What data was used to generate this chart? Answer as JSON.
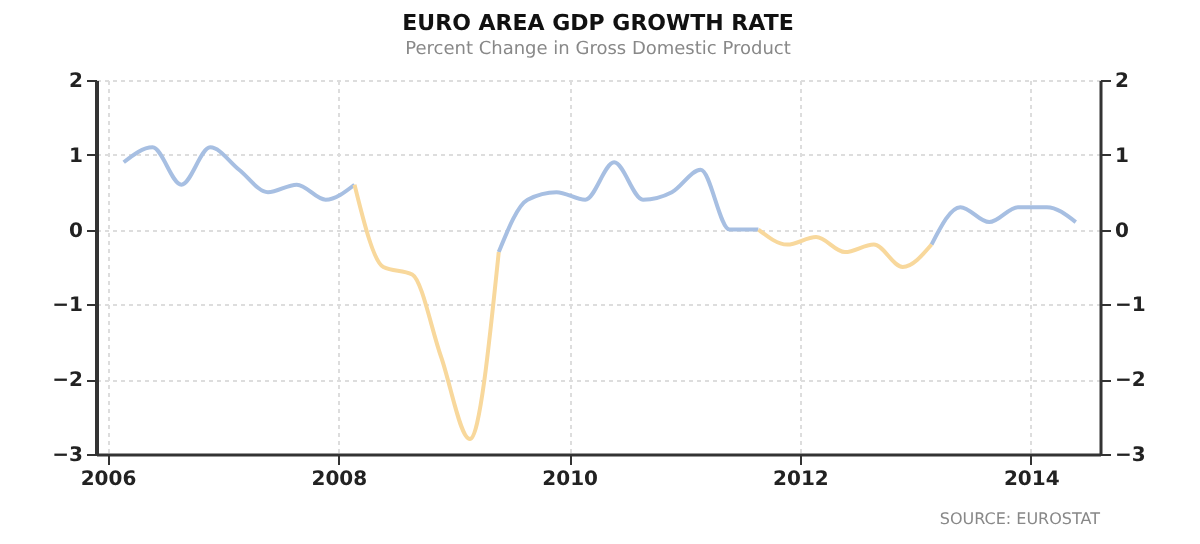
{
  "chart_data": {
    "type": "line",
    "title": "EURO AREA GDP GROWTH RATE",
    "subtitle": "Percent Change in Gross Domestic Product",
    "annotations": [
      "SOURCE: EUROSTAT"
    ],
    "x": [
      2006.14,
      2006.39,
      2006.64,
      2006.89,
      2007.14,
      2007.39,
      2007.64,
      2007.89,
      2008.14,
      2008.39,
      2008.64,
      2008.89,
      2009.14,
      2009.39,
      2009.64,
      2009.89,
      2010.14,
      2010.39,
      2010.64,
      2010.89,
      2011.14,
      2011.39,
      2011.64,
      2011.89,
      2012.14,
      2012.39,
      2012.64,
      2012.89,
      2013.14,
      2013.39,
      2013.64,
      2013.89,
      2014.14,
      2014.39
    ],
    "series": [
      {
        "color": "#a7bfe2",
        "values": [
          0.9,
          1.1,
          0.6,
          1.1,
          0.8,
          0.5,
          0.6,
          0.4,
          0.6,
          null,
          null,
          null,
          null,
          -0.3,
          0.4,
          0.5,
          0.4,
          0.9,
          0.4,
          0.5,
          0.8,
          0.0,
          0.0,
          null,
          null,
          null,
          null,
          null,
          -0.2,
          0.3,
          0.1,
          0.3,
          0.3,
          0.1
        ]
      },
      {
        "color": "#f8d89c",
        "values": [
          null,
          null,
          null,
          null,
          null,
          null,
          null,
          null,
          0.6,
          -0.5,
          -0.6,
          -1.7,
          -2.8,
          -0.3,
          null,
          null,
          null,
          null,
          null,
          null,
          null,
          null,
          0.0,
          -0.2,
          -0.1,
          -0.3,
          -0.2,
          -0.5,
          -0.2,
          null,
          null,
          null,
          null,
          null
        ]
      }
    ],
    "xlim": [
      2005.9,
      2014.6
    ],
    "xticks": [
      2006,
      2008,
      2010,
      2012,
      2014
    ],
    "ylim": [
      -3,
      2
    ],
    "yticks": [
      -3,
      -2,
      -1,
      0,
      1,
      2
    ],
    "y2lim": [
      -3,
      2
    ],
    "y2ticks": [
      -3,
      -2,
      -1,
      0,
      1,
      2
    ],
    "grid": true,
    "legend": false
  }
}
